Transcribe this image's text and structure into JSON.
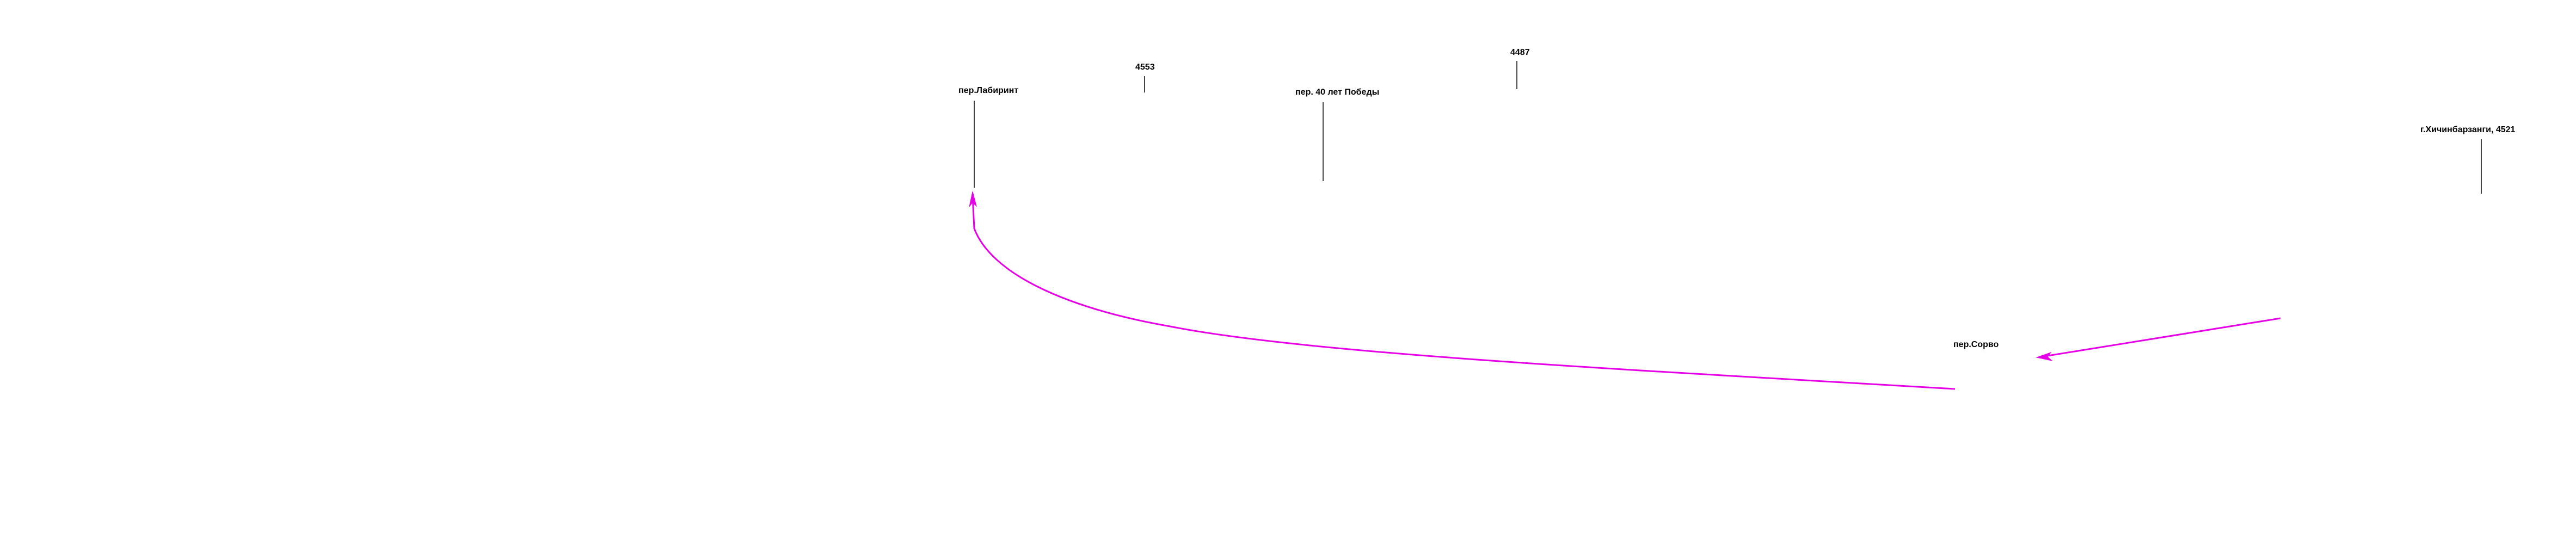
{
  "map": {
    "labels": [
      {
        "id": "labirint",
        "text": "пер.Лабиринт"
      },
      {
        "id": "n4553",
        "text": "4553"
      },
      {
        "id": "pobedy",
        "text": "пер. 40 лет Победы"
      },
      {
        "id": "n4487",
        "text": "4487"
      },
      {
        "id": "khichinbarzangi",
        "text": "г.Хичинбарзанги, 4521"
      },
      {
        "id": "sorvo",
        "text": "пер.Сорво"
      }
    ],
    "route": {
      "color": "#e600e6"
    }
  }
}
